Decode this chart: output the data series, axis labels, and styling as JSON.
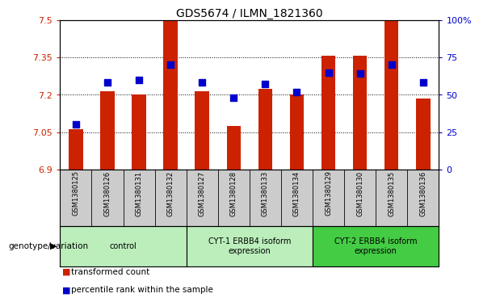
{
  "title": "GDS5674 / ILMN_1821360",
  "samples": [
    "GSM1380125",
    "GSM1380126",
    "GSM1380131",
    "GSM1380132",
    "GSM1380127",
    "GSM1380128",
    "GSM1380133",
    "GSM1380134",
    "GSM1380129",
    "GSM1380130",
    "GSM1380135",
    "GSM1380136"
  ],
  "transformed_count": [
    7.06,
    7.215,
    7.2,
    7.5,
    7.215,
    7.075,
    7.225,
    7.2,
    7.355,
    7.355,
    7.5,
    7.185
  ],
  "percentile_rank": [
    30,
    58,
    60,
    70,
    58,
    48,
    57,
    52,
    65,
    64,
    70,
    58
  ],
  "y_min": 6.9,
  "y_max": 7.5,
  "y_ticks": [
    6.9,
    7.05,
    7.2,
    7.35,
    7.5
  ],
  "right_y_ticks": [
    0,
    25,
    50,
    75,
    100
  ],
  "right_y_labels": [
    "0",
    "25",
    "50",
    "75",
    "100%"
  ],
  "groups": [
    {
      "label": "control",
      "start": 0,
      "end": 4,
      "color": "#bbeebb"
    },
    {
      "label": "CYT-1 ERBB4 isoform\nexpression",
      "start": 4,
      "end": 8,
      "color": "#bbeebb"
    },
    {
      "label": "CYT-2 ERBB4 isoform\nexpression",
      "start": 8,
      "end": 12,
      "color": "#44cc44"
    }
  ],
  "bar_color": "#cc2200",
  "dot_color": "#0000cc",
  "bar_width": 0.45,
  "dot_size": 28,
  "background_color": "#ffffff",
  "label_area_bg": "#cccccc",
  "genotype_label": "genotype/variation",
  "legend_items": [
    {
      "color": "#cc2200",
      "label": "transformed count"
    },
    {
      "color": "#0000cc",
      "label": "percentile rank within the sample"
    }
  ]
}
